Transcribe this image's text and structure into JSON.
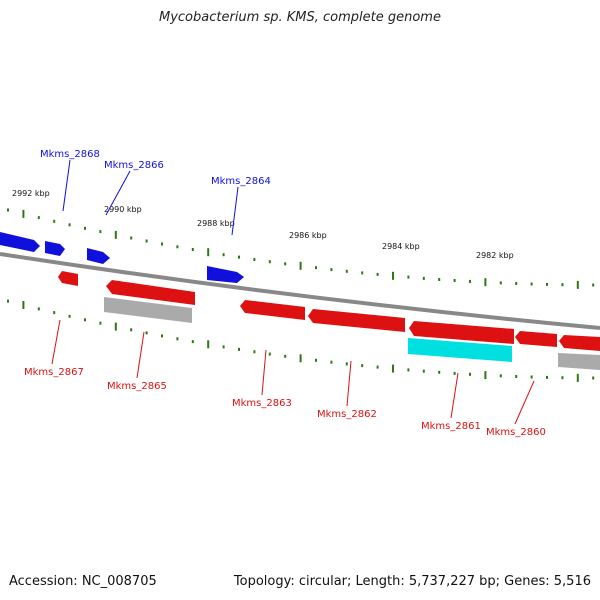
{
  "title": "Mycobacterium sp. KMS, complete genome",
  "footer": {
    "accession": "Accession: NC_008705",
    "summary": "Topology: circular; Length: 5,737,227 bp; Genes: 5,516"
  },
  "colors": {
    "backbone": "#888888",
    "tick": "#2a7a10",
    "forward_gene": "#1010dd",
    "reverse_gene": "#dd1111",
    "pseudo_gene": "#aaaaaa",
    "rna_gene": "#00e0e0"
  },
  "kbp_labels": [
    "2992 kbp",
    "2990 kbp",
    "2988 kbp",
    "2986 kbp",
    "2984 kbp",
    "2982 kbp"
  ],
  "genes_top": [
    "Mkms_2868",
    "Mkms_2866",
    "Mkms_2864"
  ],
  "genes_bottom": [
    "Mkms_2867",
    "Mkms_2865",
    "Mkms_2863",
    "Mkms_2862",
    "Mkms_2861",
    "Mkms_2860"
  ]
}
